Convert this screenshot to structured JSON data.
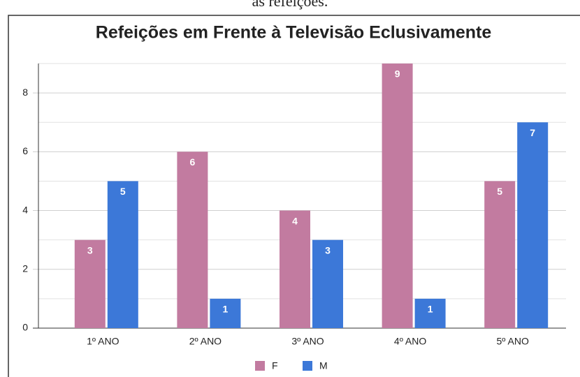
{
  "caption": "as refeições.",
  "chart_data": {
    "type": "bar",
    "title": "Refeições em Frente à Televisão Eclusivamente",
    "categories": [
      "1º ANO",
      "2º ANO",
      "3º ANO",
      "4º ANO",
      "5º ANO"
    ],
    "series": [
      {
        "name": "F",
        "color": "#c27ba0",
        "values": [
          3,
          6,
          4,
          9,
          5
        ]
      },
      {
        "name": "M",
        "color": "#3c78d8",
        "values": [
          5,
          1,
          3,
          1,
          7
        ]
      }
    ],
    "ylim": [
      0,
      9
    ],
    "yticks": [
      0,
      2,
      4,
      6,
      8
    ],
    "minor_yticks": [
      1,
      3,
      5,
      7,
      9
    ],
    "grid": true,
    "legend": "bottom",
    "data_labels": true
  }
}
